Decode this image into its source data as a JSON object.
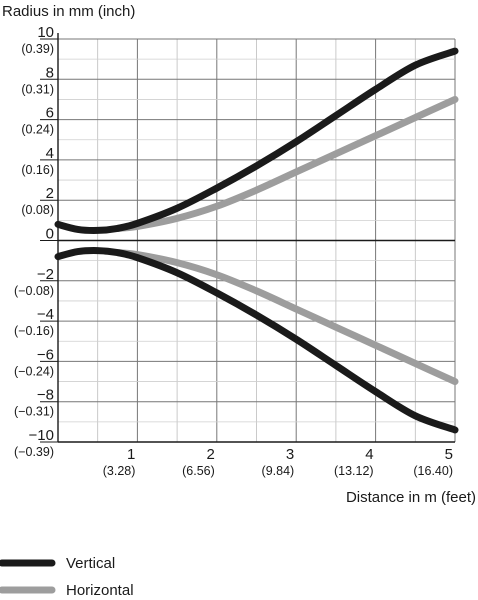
{
  "chart_data": {
    "type": "line",
    "title": "",
    "ylabel": "Radius in mm (inch)",
    "xlabel": "Distance in m (feet)",
    "xlim": [
      0,
      5
    ],
    "ylim": [
      -10,
      10
    ],
    "grid": true,
    "legend_position": "bottom-left",
    "x_ticks": [
      {
        "value": 1,
        "label": "1",
        "sublabel": "(3.28)"
      },
      {
        "value": 2,
        "label": "2",
        "sublabel": "(6.56)"
      },
      {
        "value": 3,
        "label": "3",
        "sublabel": "(9.84)"
      },
      {
        "value": 4,
        "label": "4",
        "sublabel": "(13.12)"
      },
      {
        "value": 5,
        "label": "5",
        "sublabel": "(16.40)"
      }
    ],
    "y_ticks": [
      {
        "value": 10,
        "label": "10",
        "sublabel": "(0.39)"
      },
      {
        "value": 8,
        "label": "8",
        "sublabel": "(0.31)"
      },
      {
        "value": 6,
        "label": "6",
        "sublabel": "(0.24)"
      },
      {
        "value": 4,
        "label": "4",
        "sublabel": "(0.16)"
      },
      {
        "value": 2,
        "label": "2",
        "sublabel": "(0.08)"
      },
      {
        "value": 0,
        "label": "0",
        "sublabel": ""
      },
      {
        "value": -2,
        "label": "−2",
        "sublabel": "(−0.08)"
      },
      {
        "value": -4,
        "label": "−4",
        "sublabel": "(−0.16)"
      },
      {
        "value": -6,
        "label": "−6",
        "sublabel": "(−0.24)"
      },
      {
        "value": -8,
        "label": "−8",
        "sublabel": "(−0.31)"
      },
      {
        "value": -10,
        "label": "−10",
        "sublabel": "(−0.39)"
      }
    ],
    "x": [
      0,
      0.25,
      0.5,
      0.75,
      1,
      1.5,
      2,
      2.5,
      3,
      3.5,
      4,
      4.5,
      5
    ],
    "series": [
      {
        "name": "Vertical",
        "color": "#1a1a1a",
        "upper": [
          0.8,
          0.55,
          0.5,
          0.6,
          0.85,
          1.6,
          2.6,
          3.7,
          4.9,
          6.2,
          7.5,
          8.7,
          9.4
        ],
        "lower": [
          -0.8,
          -0.55,
          -0.5,
          -0.6,
          -0.85,
          -1.6,
          -2.6,
          -3.7,
          -4.9,
          -6.2,
          -7.5,
          -8.7,
          -9.4
        ]
      },
      {
        "name": "Horizontal",
        "color": "#9d9d9d",
        "upper": [
          null,
          null,
          null,
          0.6,
          0.7,
          1.1,
          1.7,
          2.5,
          3.4,
          4.3,
          5.2,
          6.1,
          7.0
        ],
        "lower": [
          null,
          null,
          null,
          -0.6,
          -0.7,
          -1.1,
          -1.7,
          -2.5,
          -3.4,
          -4.3,
          -5.2,
          -6.1,
          -7.0
        ]
      }
    ]
  }
}
